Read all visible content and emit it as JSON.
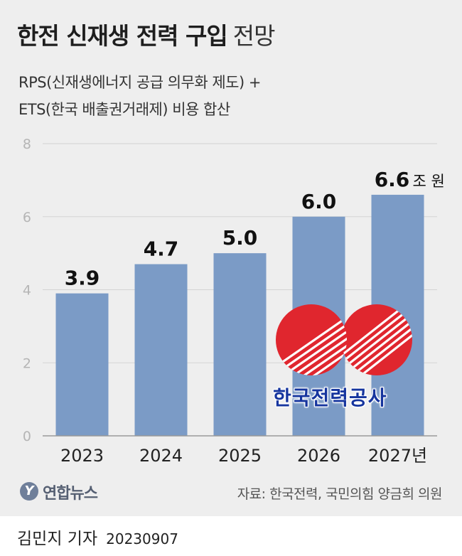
{
  "header": {
    "title_bold": "한전 신재생 전력 구입",
    "title_light": "전망",
    "subtitle_line1": "RPS(신재생에너지 공급 의무화 제도) +",
    "subtitle_line2": "ETS(한국 배출권거래제) 비용 합산"
  },
  "chart_data": {
    "type": "bar",
    "categories": [
      "2023",
      "2024",
      "2025",
      "2026",
      "2027년"
    ],
    "values": [
      3.9,
      4.7,
      5.0,
      6.0,
      6.6
    ],
    "value_labels": [
      "3.9",
      "4.7",
      "5.0",
      "6.0",
      "6.6"
    ],
    "unit": "조 원",
    "ylim": [
      0,
      8
    ],
    "yticks": [
      "0",
      "2",
      "4",
      "6",
      "8"
    ],
    "grid": true,
    "colors": {
      "bar": "#7b9bc6",
      "background": "#eeeeee"
    }
  },
  "logo": {
    "name": "kepco-logo",
    "text": "한국전력공사",
    "colors": {
      "red": "#e0262e",
      "blue": "#16359e"
    }
  },
  "footer": {
    "agency": "연합뉴스",
    "agency_mark": "Y",
    "source": "자료: 한국전력, 국민의힘 양금희 의원",
    "reporter": "김민지 기자",
    "date": "20230907"
  }
}
